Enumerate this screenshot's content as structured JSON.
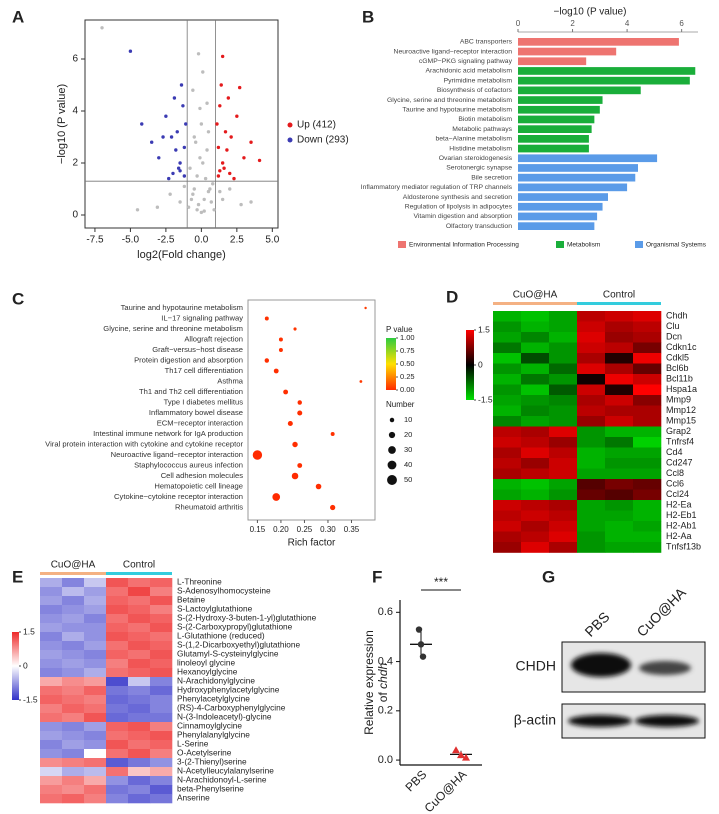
{
  "chart_data": [
    {
      "panel": "A",
      "type": "scatter",
      "xlabel": "log2(Fold change)",
      "ylabel": "−log10 (P value)",
      "xlim": [
        -8.2,
        5.4
      ],
      "ylim": [
        -0.5,
        7.5
      ],
      "xticks": [
        -7.5,
        {
          "value": -5,
          "label": "-5.0"
        },
        -2.5,
        {
          "value": 0,
          "label": "0.0"
        },
        2.5,
        {
          "value": 5,
          "label": "5.0"
        }
      ],
      "yticks": [
        0,
        2,
        4,
        6
      ],
      "vlines": [
        -1,
        1
      ],
      "hline": 1.3,
      "legend": "right",
      "series": [
        {
          "color": "#bdbdbd",
          "x": [
            -0.9,
            -0.7,
            -0.5,
            -0.3,
            -0.1,
            0.1,
            0.3,
            0.5,
            0.7,
            0.9,
            -0.8,
            -0.4,
            0,
            0.4,
            0.8,
            -0.6,
            -0.2,
            0.2,
            0.6,
            -0.5,
            0.5,
            -0.1,
            0.1,
            -1.5,
            -2.2,
            -3.1,
            1.5,
            2.0,
            2.8,
            -1.2,
            1.3,
            -4.5,
            3.5,
            0.0,
            -0.3,
            0.2,
            -7.0,
            -0.6,
            0.4,
            -0.2
          ],
          "values": [
            0.3,
            0.6,
            1.0,
            1.5,
            2.2,
            2.0,
            1.4,
            0.9,
            0.5,
            0.2,
            1.8,
            2.8,
            3.5,
            2.5,
            1.2,
            0.8,
            0.4,
            0.6,
            1.0,
            3.0,
            3.2,
            4.1,
            5.5,
            0.5,
            0.8,
            0.3,
            0.6,
            1.0,
            0.4,
            1.1,
            0.9,
            0.2,
            0.5,
            0.1,
            0.2,
            0.15,
            7.2,
            4.8,
            4.3,
            6.2
          ]
        },
        {
          "name": "Up (412)",
          "color": "#e41a1c",
          "x": [
            1.2,
            1.5,
            1.8,
            2.1,
            2.5,
            1.3,
            1.6,
            2.0,
            3.0,
            1.1,
            1.4,
            1.9,
            2.3,
            3.5,
            1.2,
            1.7,
            2.7,
            1.5,
            4.1,
            1.3
          ],
          "values": [
            1.5,
            2.0,
            2.5,
            3.0,
            3.8,
            4.2,
            1.8,
            1.6,
            2.2,
            3.5,
            5.0,
            4.5,
            1.4,
            2.8,
            2.6,
            3.2,
            4.9,
            6.1,
            2.1,
            1.7
          ]
        },
        {
          "name": "Down (293)",
          "color": "#3b3bb3",
          "x": [
            -1.2,
            -1.5,
            -1.8,
            -2.1,
            -2.5,
            -1.3,
            -1.6,
            -2.0,
            -3.0,
            -1.1,
            -1.4,
            -1.9,
            -2.3,
            -3.5,
            -1.2,
            -1.7,
            -2.7,
            -4.2,
            -5.0,
            -1.5
          ],
          "values": [
            1.5,
            2.0,
            2.5,
            3.0,
            3.8,
            4.2,
            1.8,
            1.6,
            2.2,
            3.5,
            5.0,
            4.5,
            1.4,
            2.8,
            2.6,
            3.2,
            3.0,
            3.5,
            6.3,
            1.7
          ]
        }
      ]
    },
    {
      "panel": "B",
      "type": "hbar",
      "xlabel": "−log10 (P value)",
      "xlim": [
        0,
        6.6
      ],
      "xticks": [
        0,
        2,
        4,
        6
      ],
      "categories": [
        "ABC transporters",
        "Neuroactive ligand−receptor interaction",
        "cGMP−PKG signaling pathway",
        "Arachidonic acid metabolism",
        "Pyrimidine metabolism",
        "Biosynthesis of cofactors",
        "Glycine, serine and threonine metabolism",
        "Taurine and hypotaurine metabolism",
        "Biotin metabolism",
        "Metabolic pathways",
        "beta−Alanine metabolism",
        "Histidine metabolism",
        "Ovarian steroidogenesis",
        "Serotonergic synapse",
        "Bile secretion",
        "Inflammatory mediator regulation of TRP channels",
        "Aldosterone synthesis and secretion",
        "Regulation of lipolysis in adipocytes",
        "Vitamin digestion and absorption",
        "Olfactory transduction"
      ],
      "series": [
        {
          "name": "Environmental Information Processing",
          "color": "#ee7470",
          "values": [
            5.9,
            3.6,
            2.5,
            null,
            null,
            null,
            null,
            null,
            null,
            null,
            null,
            null,
            null,
            null,
            null,
            null,
            null,
            null,
            null,
            null
          ]
        },
        {
          "name": "Metabolism",
          "color": "#1aae3a",
          "values": [
            null,
            null,
            null,
            6.5,
            6.3,
            4.5,
            3.1,
            3.0,
            2.8,
            2.7,
            2.6,
            2.6,
            null,
            null,
            null,
            null,
            null,
            null,
            null,
            null
          ]
        },
        {
          "name": "Organismal Systems",
          "color": "#5a9be8",
          "values": [
            null,
            null,
            null,
            null,
            null,
            null,
            null,
            null,
            null,
            null,
            null,
            null,
            5.1,
            4.4,
            4.3,
            4.0,
            3.3,
            3.1,
            2.9,
            2.8
          ]
        }
      ]
    },
    {
      "panel": "C",
      "type": "bubble",
      "xlabel": "Rich factor",
      "xlim": [
        0.13,
        0.4
      ],
      "xticks": [
        0.15,
        {
          "value": 0.2,
          "label": "0.20"
        },
        0.25,
        {
          "value": 0.3,
          "label": "0.30"
        },
        0.35
      ],
      "categories": [
        "Taurine and hypotaurine metabolism",
        "IL−17 signaling pathway",
        "Glycine, serine and threonine metabolism",
        "Allograft rejection",
        "Graft−versus−host disease",
        "Protein digestion and absorption",
        "Th17 cell differentiation",
        "Asthma",
        "Th1 and Th2 cell differentiation",
        "Type I diabetes mellitus",
        "Inflammatory bowel disease",
        "ECM−receptor interaction",
        "Intestinal immune network for IgA production",
        "Viral protein interaction with cytokine and cytokine receptor",
        "Neuroactive ligand−receptor interaction",
        "Staphylococcus aureus infection",
        "Cell adhesion molecules",
        "Hematopoietic cell lineage",
        "Cytokine−cytokine receptor interaction",
        "Rheumatoid arthritis"
      ],
      "values": [
        0.38,
        0.17,
        0.23,
        0.2,
        0.2,
        0.17,
        0.19,
        0.37,
        0.21,
        0.24,
        0.24,
        0.22,
        0.31,
        0.23,
        0.15,
        0.24,
        0.23,
        0.28,
        0.19,
        0.31
      ],
      "sizes": [
        3,
        8,
        5,
        8,
        8,
        10,
        12,
        4,
        12,
        10,
        13,
        13,
        8,
        15,
        45,
        12,
        22,
        16,
        30,
        14
      ],
      "pvalues": [
        0.05,
        0.02,
        0.03,
        0.02,
        0.02,
        0.01,
        0.01,
        0.04,
        0.01,
        0.01,
        0.01,
        0.01,
        0.02,
        0.01,
        0.001,
        0.01,
        0.001,
        0.01,
        0.001,
        0.01
      ],
      "color_title": "P value",
      "color_lim": [
        0,
        1
      ],
      "colors": [
        "#ff2a00",
        "#ffe000",
        "#2ecc40"
      ],
      "color_ticks": [
        {
          "value": 0,
          "label": "0.00"
        },
        0.25,
        {
          "value": 0.5,
          "label": "0.50"
        },
        0.75,
        {
          "value": 1,
          "label": "1.00"
        }
      ],
      "size_title": "Number",
      "size_ticks": [
        10,
        20,
        30,
        40,
        50
      ],
      "color": "#dd1c1c"
    },
    {
      "panel": "D",
      "type": "heatmap",
      "groups": [
        {
          "name": "CuO@HA",
          "color": "#f4b183",
          "columns": 3
        },
        {
          "name": "Control",
          "color": "#33ccdd",
          "columns": 3
        }
      ],
      "rows": [
        "Chdh",
        "Clu",
        "Dcn",
        "Cdkn1c",
        "Cdkl5",
        "Bcl6b",
        "Bcl11b",
        "Hspa1a",
        "Mmp9",
        "Mmp12",
        "Mmp15",
        "Grap2",
        "Tnfrsf4",
        "Cd4",
        "Cd247",
        "Ccl8",
        "Ccl6",
        "Ccl24",
        "H2-Ea",
        "H2-Eb1",
        "H2-Ab1",
        "H2-Aa",
        "Tnfsf13b"
      ],
      "values": [
        [
          -1.2,
          -1.3,
          -1.1,
          1.1,
          1.2,
          1.3
        ],
        [
          -1.0,
          -1.2,
          -1.1,
          1.2,
          1.0,
          1.1
        ],
        [
          -1.1,
          -0.9,
          -1.2,
          1.3,
          0.9,
          1.0
        ],
        [
          -0.8,
          -1.2,
          -1.0,
          1.2,
          1.1,
          0.7
        ],
        [
          -1.3,
          -0.5,
          -1.0,
          1.0,
          0.2,
          1.4
        ],
        [
          -1.0,
          -1.2,
          -0.7,
          1.3,
          1.0,
          0.6
        ],
        [
          -1.2,
          -0.8,
          -1.0,
          0.1,
          1.4,
          1.2
        ],
        [
          -1.0,
          -1.3,
          -0.6,
          1.2,
          0.2,
          1.5
        ],
        [
          -1.1,
          -1.0,
          -0.9,
          1.0,
          1.2,
          0.8
        ],
        [
          -1.2,
          -0.9,
          -1.0,
          1.1,
          1.0,
          1.0
        ],
        [
          -0.9,
          -1.1,
          -1.0,
          0.9,
          1.2,
          1.0
        ],
        [
          1.1,
          1.0,
          1.3,
          -1.0,
          -1.2,
          -1.2
        ],
        [
          1.2,
          1.1,
          0.9,
          -1.0,
          -0.8,
          -1.4
        ],
        [
          1.0,
          1.3,
          1.1,
          -1.2,
          -1.1,
          -1.1
        ],
        [
          1.1,
          0.9,
          1.2,
          -1.2,
          -1.0,
          -1.0
        ],
        [
          1.0,
          1.1,
          1.2,
          -1.1,
          -1.1,
          -1.1
        ],
        [
          -1.2,
          -1.3,
          -1.1,
          0.5,
          0.7,
          0.6
        ],
        [
          -1.1,
          -1.2,
          -1.0,
          0.6,
          0.5,
          0.7
        ],
        [
          1.2,
          1.1,
          1.0,
          -1.1,
          -1.0,
          -1.2
        ],
        [
          1.1,
          1.2,
          1.1,
          -1.1,
          -1.1,
          -1.2
        ],
        [
          1.2,
          1.0,
          1.2,
          -1.1,
          -1.2,
          -1.1
        ],
        [
          1.0,
          1.1,
          1.3,
          -1.0,
          -1.2,
          -1.2
        ],
        [
          0.9,
          1.3,
          1.0,
          -1.0,
          -1.1,
          -1.1
        ]
      ],
      "color_lim": [
        -1.5,
        1.5
      ],
      "color_ticks": [
        1.5,
        0,
        -1.5
      ],
      "colors": [
        "#00e000",
        "#000000",
        "#ff0000"
      ]
    },
    {
      "panel": "E",
      "type": "heatmap",
      "groups": [
        {
          "name": "CuO@HA",
          "color": "#f4b183",
          "columns": 3
        },
        {
          "name": "Control",
          "color": "#33ccdd",
          "columns": 3
        }
      ],
      "rows": [
        "L-Threonine",
        "S-Adenosylhomocysteine",
        "Betaine",
        "S-Lactoylglutathione",
        "S-(2-Hydroxy-3-buten-1-yl)glutathione",
        "S-(2-Carboxypropyl)glutathione",
        "L-Glutathione (reduced)",
        "S-(1,2-Dicarboxyethyl)glutathione",
        "Glutamyl-S-cysteinylglycine",
        "linoleoyl glycine",
        "Hexanoylglycine",
        "N-Arachidonylglycine",
        "Hydroxyphenylacetylglycine",
        "Phenylacetylglycine",
        "(RS)-4-Carboxyphenylglycine",
        "N-(3-Indoleacetyl)-glycine",
        "Cinnamoylglycine",
        "Phenylalanylglycine",
        "L-Serine",
        "O-Acetylserine",
        "3-(2-Thienyl)serine",
        "N-Acetylleucylalanylserine",
        "N-Arachidonoyl-L-serine",
        "beta-Phenylserine",
        "Anserine"
      ],
      "values": [
        [
          -0.6,
          -0.9,
          -0.4,
          1.2,
          1.0,
          1.1
        ],
        [
          -0.8,
          -0.5,
          -0.7,
          1.0,
          1.3,
          0.9
        ],
        [
          -0.7,
          -0.9,
          -0.6,
          1.1,
          1.0,
          1.2
        ],
        [
          -0.9,
          -0.8,
          -0.7,
          1.2,
          1.1,
          0.9
        ],
        [
          -0.8,
          -0.7,
          -0.9,
          1.0,
          1.2,
          1.1
        ],
        [
          -0.7,
          -0.8,
          -0.8,
          1.1,
          1.0,
          1.2
        ],
        [
          -0.9,
          -0.6,
          -0.8,
          1.2,
          1.1,
          1.0
        ],
        [
          -0.8,
          -0.9,
          -0.7,
          1.0,
          1.2,
          1.1
        ],
        [
          -0.7,
          -0.8,
          -0.9,
          1.1,
          1.0,
          1.2
        ],
        [
          -0.8,
          -0.7,
          -0.8,
          0.9,
          1.2,
          1.1
        ],
        [
          -0.9,
          -0.8,
          -0.6,
          1.0,
          1.1,
          1.2
        ],
        [
          0.6,
          0.8,
          0.7,
          -1.3,
          -0.4,
          -0.9
        ],
        [
          1.0,
          0.9,
          1.1,
          -1.0,
          -0.9,
          -1.1
        ],
        [
          1.1,
          1.0,
          0.9,
          -1.1,
          -1.0,
          -0.9
        ],
        [
          0.9,
          1.1,
          1.0,
          -1.0,
          -1.1,
          -0.9
        ],
        [
          1.0,
          0.9,
          1.2,
          -1.1,
          -1.0,
          -1.0
        ],
        [
          -0.8,
          -0.9,
          -0.7,
          1.1,
          1.2,
          0.9
        ],
        [
          -0.7,
          -0.8,
          -0.9,
          1.0,
          1.1,
          1.2
        ],
        [
          -0.9,
          -0.7,
          -0.8,
          1.2,
          1.0,
          1.1
        ],
        [
          -0.8,
          -0.9,
          0.0,
          1.0,
          1.2,
          0.9
        ],
        [
          0.8,
          0.9,
          1.0,
          -1.2,
          -1.0,
          -0.8
        ],
        [
          -0.3,
          -0.6,
          -0.5,
          1.0,
          0.4,
          0.6
        ],
        [
          0.7,
          0.9,
          0.6,
          -0.8,
          -1.1,
          -0.9
        ],
        [
          0.9,
          0.8,
          1.0,
          -1.0,
          -0.9,
          -1.2
        ],
        [
          1.0,
          1.1,
          0.9,
          -0.9,
          -1.1,
          -1.0
        ]
      ],
      "color_lim": [
        -1.5,
        1.5
      ],
      "color_ticks": [
        1.5,
        0,
        -1.5
      ],
      "colors": [
        "#3232c8",
        "#ffffff",
        "#ee2a2a"
      ]
    },
    {
      "panel": "F",
      "type": "dotplot",
      "ylabel": {
        "line1": "Relative expression",
        "line2": "of",
        "gene": "chdh"
      },
      "categories": [
        "PBS",
        "CuO@HA"
      ],
      "points": [
        [
          0.53,
          0.47,
          0.42
        ],
        [
          0.04,
          0.02,
          0.01
        ]
      ],
      "means": [
        0.47,
        0.023
      ],
      "sd": [
        0.055,
        0.015
      ],
      "colors": [
        "#333333",
        "#e03030"
      ],
      "ylim": [
        -0.02,
        0.65
      ],
      "yticks": [
        {
          "value": 0,
          "label": "0.0"
        },
        0.2,
        0.4,
        0.6
      ],
      "annotation": "***"
    },
    {
      "panel": "G",
      "type": "blot",
      "lanes": [
        "PBS",
        "CuO@HA"
      ],
      "bands": [
        "CHDH",
        "β-actin"
      ]
    }
  ]
}
